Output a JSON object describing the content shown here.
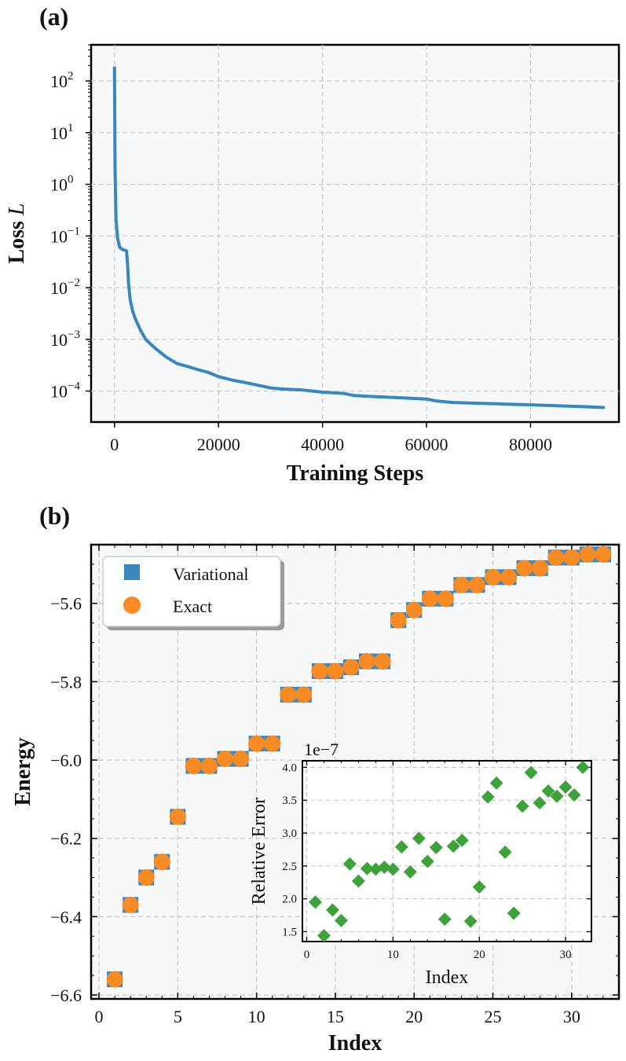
{
  "chart_data": [
    {
      "panel_label": "(a)",
      "type": "line",
      "xlabel": "Training Steps",
      "ylabel_prefix": "Loss ",
      "ylabel_var": "L",
      "yscale": "log",
      "xlim": [
        -4500,
        97000
      ],
      "ylim_log10": [
        -4.6,
        2.7
      ],
      "xticks": [
        0,
        20000,
        40000,
        60000,
        80000
      ],
      "xtick_labels": [
        "0",
        "20000",
        "40000",
        "60000",
        "80000"
      ],
      "yticks_log10": [
        -4,
        -3,
        -2,
        -1,
        0,
        1,
        2
      ],
      "ytick_mantissa": "10",
      "ytick_exponents": [
        "−4",
        "−3",
        "−2",
        "−1",
        "0",
        "1",
        "2"
      ],
      "series": [
        {
          "name": "loss",
          "color": "#3a86bf",
          "x": [
            0,
            100,
            300,
            600,
            1000,
            1500,
            2000,
            2300,
            2500,
            2700,
            3000,
            3500,
            4000,
            5000,
            6000,
            7000,
            8000,
            10000,
            12000,
            14000,
            16000,
            18000,
            20000,
            23000,
            26000,
            30000,
            32000,
            36000,
            40000,
            44000,
            46000,
            50000,
            55000,
            60000,
            62000,
            65000,
            70000,
            75000,
            80000,
            85000,
            90000,
            94000
          ],
          "y": [
            180,
            2,
            0.2,
            0.09,
            0.06,
            0.055,
            0.053,
            0.052,
            0.03,
            0.012,
            0.006,
            0.0035,
            0.0025,
            0.0015,
            0.001,
            0.0008,
            0.00065,
            0.00045,
            0.00034,
            0.0003,
            0.00026,
            0.00023,
            0.00019,
            0.00016,
            0.00014,
            0.000115,
            0.00011,
            0.000105,
            9.5e-05,
            9e-05,
            8.2e-05,
            7.8e-05,
            7.4e-05,
            7e-05,
            6.4e-05,
            6e-05,
            5.8e-05,
            5.6e-05,
            5.4e-05,
            5.2e-05,
            5e-05,
            4.8e-05
          ]
        }
      ]
    },
    {
      "panel_label": "(b)",
      "type": "scatter",
      "xlabel": "Index",
      "ylabel": "Energy",
      "xlim": [
        -0.5,
        33
      ],
      "ylim": [
        -6.61,
        -5.45
      ],
      "xticks": [
        0,
        5,
        10,
        15,
        20,
        25,
        30
      ],
      "xtick_labels": [
        "0",
        "5",
        "10",
        "15",
        "20",
        "25",
        "30"
      ],
      "yticks": [
        -6.6,
        -6.4,
        -6.2,
        -6.0,
        -5.8,
        -5.6
      ],
      "ytick_labels": [
        "−6.6",
        "−6.4",
        "−6.2",
        "−6.0",
        "−5.8",
        "−5.6"
      ],
      "legend": {
        "position": "upper-left",
        "entries": [
          {
            "label": "Variational",
            "color": "#3a86bf",
            "marker": "square"
          },
          {
            "label": "Exact",
            "color": "#f68a24",
            "marker": "circle"
          }
        ]
      },
      "series": [
        {
          "name": "Variational",
          "color": "#3a86bf",
          "x": [
            1,
            2,
            3,
            4,
            5,
            6,
            7,
            8,
            9,
            10,
            11,
            12,
            13,
            14,
            15,
            16,
            17,
            18,
            19,
            20,
            21,
            22,
            23,
            24,
            25,
            26,
            27,
            28,
            29,
            30,
            31,
            32
          ],
          "y": [
            -6.56,
            -6.37,
            -6.3,
            -6.26,
            -6.145,
            -6.015,
            -6.015,
            -5.997,
            -5.997,
            -5.958,
            -5.958,
            -5.833,
            -5.833,
            -5.773,
            -5.773,
            -5.763,
            -5.748,
            -5.748,
            -5.643,
            -5.617,
            -5.588,
            -5.588,
            -5.553,
            -5.553,
            -5.533,
            -5.533,
            -5.51,
            -5.51,
            -5.483,
            -5.483,
            -5.475,
            -5.475
          ]
        },
        {
          "name": "Exact",
          "color": "#f68a24",
          "x": [
            1,
            2,
            3,
            4,
            5,
            6,
            7,
            8,
            9,
            10,
            11,
            12,
            13,
            14,
            15,
            16,
            17,
            18,
            19,
            20,
            21,
            22,
            23,
            24,
            25,
            26,
            27,
            28,
            29,
            30,
            31,
            32
          ],
          "y": [
            -6.56,
            -6.37,
            -6.3,
            -6.26,
            -6.145,
            -6.015,
            -6.015,
            -5.997,
            -5.997,
            -5.958,
            -5.958,
            -5.833,
            -5.833,
            -5.773,
            -5.773,
            -5.763,
            -5.748,
            -5.748,
            -5.643,
            -5.617,
            -5.588,
            -5.588,
            -5.553,
            -5.553,
            -5.533,
            -5.533,
            -5.51,
            -5.51,
            -5.483,
            -5.483,
            -5.475,
            -5.475
          ]
        }
      ]
    },
    {
      "panel_label": "(b) inset",
      "type": "scatter",
      "xlabel": "Index",
      "ylabel": "Relative Error",
      "offset_text": "1e−7",
      "xlim": [
        -0.5,
        33
      ],
      "ylim": [
        1.35,
        4.1
      ],
      "xticks": [
        0,
        10,
        20,
        30
      ],
      "xtick_labels": [
        "0",
        "10",
        "20",
        "30"
      ],
      "yticks": [
        1.5,
        2.0,
        2.5,
        3.0,
        3.5,
        4.0
      ],
      "ytick_labels": [
        "1.5",
        "2.0",
        "2.5",
        "3.0",
        "3.5",
        "4.0"
      ],
      "series": [
        {
          "name": "Relative Error",
          "color": "#3ea13b",
          "marker": "diamond",
          "x": [
            1,
            2,
            3,
            4,
            5,
            6,
            7,
            8,
            9,
            10,
            11,
            12,
            13,
            14,
            15,
            16,
            17,
            18,
            19,
            20,
            21,
            22,
            23,
            24,
            25,
            26,
            27,
            28,
            29,
            30,
            31,
            32
          ],
          "y": [
            1.95,
            1.44,
            1.83,
            1.67,
            2.53,
            2.27,
            2.46,
            2.45,
            2.48,
            2.45,
            2.79,
            2.41,
            2.92,
            2.57,
            2.78,
            1.69,
            2.8,
            2.89,
            1.66,
            2.18,
            3.55,
            3.76,
            2.71,
            1.78,
            3.41,
            3.92,
            3.46,
            3.64,
            3.56,
            3.7,
            3.58,
            4.0
          ]
        }
      ]
    }
  ]
}
